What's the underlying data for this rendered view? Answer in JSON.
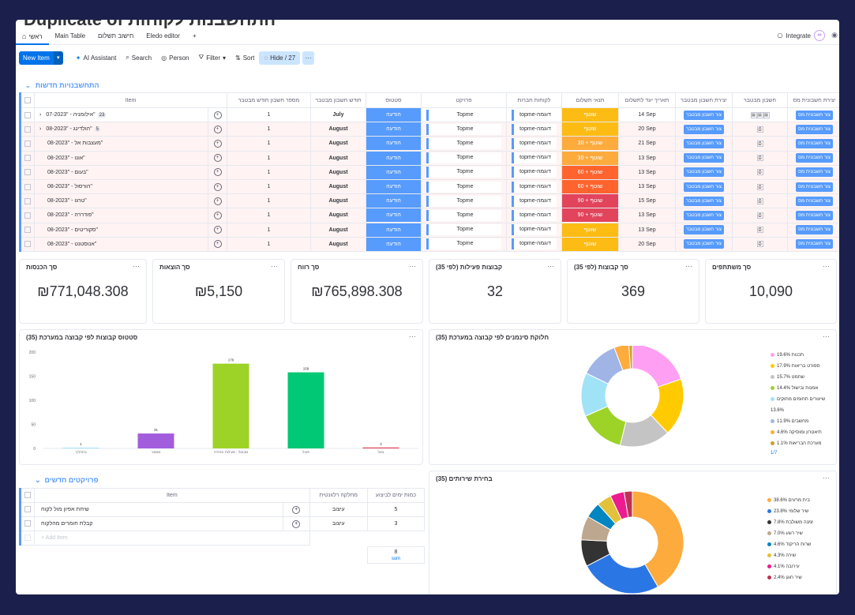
{
  "board_title": "התחשבנות לקוחות Duplicate of",
  "tabs": [
    "ראשי",
    "Main Table",
    "חישוב תשלום",
    "Eledo editor",
    "+"
  ],
  "integrate_label": "Integrate",
  "toolbar": {
    "new_item": "New Item",
    "ai": "AI Assistant",
    "search": "Search",
    "person": "Person",
    "filter": "Filter",
    "sort": "Sort",
    "hide": "Hide / 27",
    "more": "···"
  },
  "group_name": "התחשבנויות חדשות",
  "columns": [
    "Item",
    "מספר חשבון חודש מבטבר",
    "חודש חשבון מבטבר",
    "סטטוס",
    "פרויקט",
    "לקוחות חברות",
    "תנאי תשלום",
    "תאריך יעד לתשלום",
    "יצירת חשבון מבטבר",
    "חשבון מבטבר",
    "יצירת חשבונית מס"
  ],
  "rows": [
    {
      "item": "אילומניה - \"07-2023\"",
      "badge": "23",
      "expand": true,
      "n": "1",
      "month": "July",
      "status": "הודעה",
      "project": "Topme",
      "client": "topme-דוגמה",
      "pay": "שוטף",
      "pay_color": "#fdbc13",
      "due": "14 Sep",
      "btn1": "צור חשבון מבטבר",
      "btn2": "צור חשבונית מס",
      "red": false
    },
    {
      "item": "הולדינג - \"08-2023\"",
      "badge": "5",
      "expand": true,
      "n": "1",
      "month": "August",
      "status": "הודעה",
      "project": "Topme",
      "client": "topme-דוגמה",
      "pay": "שוטף",
      "pay_color": "#fdbc13",
      "due": "20 Sep",
      "btn1": "צור חשבון מבטבר",
      "btn2": "צור חשבונית מס",
      "red": true
    },
    {
      "item": "מעצבות אל - \"08-2023\"",
      "badge": "",
      "expand": false,
      "n": "1",
      "month": "August",
      "status": "הודעה",
      "project": "Topme",
      "client": "topme-דוגמה",
      "pay": "שוטף + 30",
      "pay_color": "#fdab3d",
      "due": "21 Sep",
      "btn1": "צור חשבון מבטבר",
      "btn2": "צור חשבונית מס",
      "red": true
    },
    {
      "item": "אונו - \"08-2023\"",
      "badge": "",
      "expand": false,
      "n": "1",
      "month": "August",
      "status": "הודעה",
      "project": "Topme",
      "client": "topme-דוגמה",
      "pay": "שוטף + 30",
      "pay_color": "#fdab3d",
      "due": "13 Sep",
      "btn1": "צור חשבון מבטבר",
      "btn2": "צור חשבונית מס",
      "red": true
    },
    {
      "item": "בעום - \"08-2023\"",
      "badge": "",
      "expand": false,
      "n": "1",
      "month": "August",
      "status": "הודעה",
      "project": "Topme",
      "client": "topme-דוגמה",
      "pay": "שוטף + 60",
      "pay_color": "#ff642e",
      "due": "13 Sep",
      "btn1": "צור חשבון מבטבר",
      "btn2": "צור חשבונית מס",
      "red": true
    },
    {
      "item": "הורסול - \"08-2023\"",
      "badge": "",
      "expand": false,
      "n": "1",
      "month": "August",
      "status": "הודעה",
      "project": "Topme",
      "client": "topme-דוגמה",
      "pay": "שוטף + 60",
      "pay_color": "#ff642e",
      "due": "13 Sep",
      "btn1": "צור חשבון מבטבר",
      "btn2": "צור חשבונית מס",
      "red": true
    },
    {
      "item": "טרגו - \"08-2023\"",
      "badge": "",
      "expand": false,
      "n": "1",
      "month": "August",
      "status": "הודעה",
      "project": "Topme",
      "client": "topme-דוגמה",
      "pay": "שוטף + 90",
      "pay_color": "#e2445c",
      "due": "15 Sep",
      "btn1": "צור חשבון מבטבר",
      "btn2": "צור חשבונית מס",
      "red": true
    },
    {
      "item": "פודררה - \"08-2023\"",
      "badge": "",
      "expand": false,
      "n": "1",
      "month": "August",
      "status": "הודעה",
      "project": "Topme",
      "client": "topme-דוגמה",
      "pay": "שוטף + 90",
      "pay_color": "#e2445c",
      "due": "13 Sep",
      "btn1": "צור חשבון מבטבר",
      "btn2": "צור חשבונית מס",
      "red": true
    },
    {
      "item": "סקוריטים - \"08-2023\"",
      "badge": "",
      "expand": false,
      "n": "1",
      "month": "August",
      "status": "הודעה",
      "project": "Topme",
      "client": "topme-דוגמה",
      "pay": "שוטף",
      "pay_color": "#fdbc13",
      "due": "13 Sep",
      "btn1": "צור חשבון מבטבר",
      "btn2": "צור חשבונית מס",
      "red": true
    },
    {
      "item": "אנוסטנט - \"08-2023\"",
      "badge": "",
      "expand": false,
      "n": "1",
      "month": "August",
      "status": "הודעה",
      "project": "Topme",
      "client": "topme-דוגמה",
      "pay": "שוטף",
      "pay_color": "#fdbc13",
      "due": "20 Sep",
      "btn1": "צור חשבון מבטבר",
      "btn2": "צור חשבונית מס",
      "red": true
    }
  ],
  "kpis": [
    {
      "title": "סך הכנסות",
      "value": "₪771,048.308"
    },
    {
      "title": "סך הוצאות",
      "value": "₪5,150"
    },
    {
      "title": "סך רווח",
      "value": "₪765,898.308"
    },
    {
      "title": "קבוצות פעילות (לפי 35)",
      "value": "32"
    },
    {
      "title": "סך קבוצות (לפי 35)",
      "value": "369"
    },
    {
      "title": "סך משתתפים",
      "value": "10,090"
    }
  ],
  "chart_data": [
    {
      "type": "bar",
      "title": "סטטוס קבוצות לפי קבוצה במערכת (35)",
      "categories": [
        "בתהליך",
        "מוסגר",
        "מבוטל - פעילות הגזירה",
        "פעיל",
        "בטל"
      ],
      "values": [
        1,
        31,
        176,
        158,
        2
      ],
      "colors": [
        "#a1e3f6",
        "#a25ddc",
        "#9cd326",
        "#00c875",
        "#e2445c"
      ],
      "ylim": [
        0,
        200
      ],
      "yticks": [
        0,
        50,
        100,
        150,
        200
      ]
    },
    {
      "type": "pie",
      "title": "חלוקת סינמנים לפי קבוצה במערכת (35)",
      "labels": [
        "תכנות",
        "ספורט בריאות",
        "שחמט",
        "אמנות ובישול",
        "שיעורים תחומים מתוקים",
        "מחשבים",
        "תיאטרון ומוסיקה",
        "מערכת הבריאות"
      ],
      "values": [
        19.6,
        17.9,
        15.7,
        14.4,
        13.6,
        11.9,
        4.6,
        1.1
      ],
      "pct_labels": [
        "19.6%",
        "17.9%",
        "15.7%",
        "14.4%",
        "13.6%",
        "11.9%",
        "4.6%",
        "1.1%"
      ],
      "colors": [
        "#ff9ff3",
        "#ffcb00",
        "#c4c4c4",
        "#9cd326",
        "#a1e3f6",
        "#a0b4e6",
        "#fdab3d",
        "#c9a227"
      ],
      "pager": "1/7"
    },
    {
      "type": "pie",
      "title": "בחירת שירותים (35)",
      "labels": [
        "בית מרעים",
        "שיר שלומי",
        "זמנה משולבת",
        "שיר רוגע",
        "שרות הריקוד",
        "שירה",
        "עירובה",
        "שיר חוגן"
      ],
      "values": [
        38.6,
        23.8,
        7.8,
        7.0,
        4.6,
        4.3,
        4.1,
        2.4
      ],
      "pct_labels": [
        "38.6%",
        "23.8%",
        "7.8%",
        "7.0%",
        "4.6%",
        "4.3%",
        "4.1%",
        "2.4%"
      ],
      "colors": [
        "#fdab3d",
        "#2b76e5",
        "#333333",
        "#bda78e",
        "#0086c0",
        "#e2c23a",
        "#ec1b8f",
        "#bb3354"
      ]
    }
  ],
  "projects": {
    "group": "פרויקטים חדשים",
    "columns": [
      "Item",
      "מחלקה רלוונטית",
      "כמות ימים לביצוע"
    ],
    "rows": [
      {
        "item": "שיחת אפיון מול לקוח",
        "dept": "עיצוב",
        "days": "5"
      },
      {
        "item": "קבלת חומרים מהלקוח",
        "dept": "עיצוב",
        "days": "3"
      }
    ],
    "add": "+ Add Item",
    "sum_value": "8",
    "sum_label": "sum"
  }
}
